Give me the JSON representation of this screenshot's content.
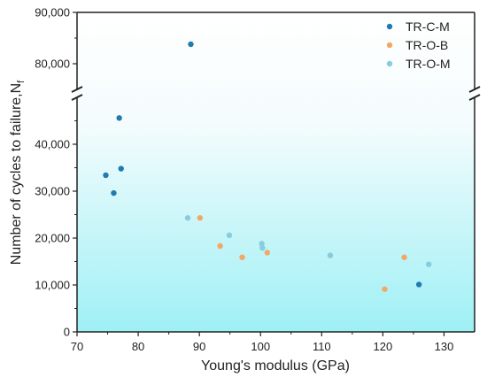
{
  "chart_data": {
    "type": "scatter",
    "title": "",
    "xlabel": "Young's modulus (GPa)",
    "ylabel": "Number of cycles to failure,N",
    "ylabel_sub": "f",
    "xlim": [
      70,
      135
    ],
    "ylim_lower": [
      0,
      50000
    ],
    "ylim_upper": [
      75000,
      90000
    ],
    "axis_break": true,
    "x_ticks": [
      "70",
      "80",
      "90",
      "100",
      "110",
      "120",
      "130"
    ],
    "y_ticks_lower": [
      "0",
      "10,000",
      "20,000",
      "30,000",
      "40,000"
    ],
    "y_ticks_upper": [
      "80,000",
      "90,000"
    ],
    "grid": false,
    "legend_position": "top-right",
    "background": "gradient white to cyan",
    "series": [
      {
        "name": "TR-C-M",
        "color": "#1f7bb0",
        "points": [
          {
            "x": 74.7,
            "y": 33400
          },
          {
            "x": 76.0,
            "y": 29600
          },
          {
            "x": 76.9,
            "y": 45600
          },
          {
            "x": 77.2,
            "y": 34800
          },
          {
            "x": 88.6,
            "y": 83800
          },
          {
            "x": 125.9,
            "y": 10100
          }
        ]
      },
      {
        "name": "TR-O-B",
        "color": "#f2a865",
        "points": [
          {
            "x": 90.1,
            "y": 24300
          },
          {
            "x": 93.4,
            "y": 18300
          },
          {
            "x": 97.0,
            "y": 15900
          },
          {
            "x": 101.1,
            "y": 16900
          },
          {
            "x": 120.3,
            "y": 9100
          },
          {
            "x": 123.5,
            "y": 15900
          }
        ]
      },
      {
        "name": "TR-O-M",
        "color": "#88cce0",
        "points": [
          {
            "x": 88.1,
            "y": 24300
          },
          {
            "x": 94.9,
            "y": 20600
          },
          {
            "x": 100.2,
            "y": 18800
          },
          {
            "x": 100.3,
            "y": 17900
          },
          {
            "x": 111.4,
            "y": 16300
          },
          {
            "x": 127.5,
            "y": 14400
          }
        ]
      }
    ]
  }
}
